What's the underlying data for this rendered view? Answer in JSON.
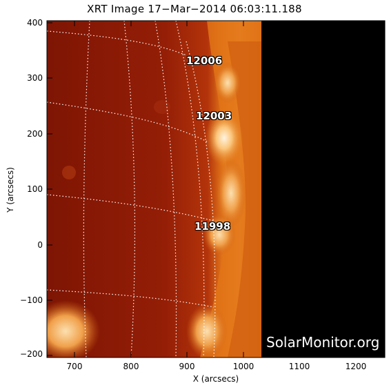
{
  "title": "XRT Image 17−Mar−2014 06:03:11.188",
  "x_axis_label": "X (arcsecs)",
  "y_axis_label": "Y (arcsecs)",
  "x_ticks": [
    "700",
    "800",
    "900",
    "1000",
    "1100",
    "1200"
  ],
  "y_ticks": [
    "400",
    "300",
    "200",
    "100",
    "0",
    "−100",
    "−200"
  ],
  "active_regions": [
    "12006",
    "12003",
    "11998"
  ],
  "watermark": "SolarMonitor.org",
  "colors": {
    "solar_disk": "#8b1a06",
    "corona": "#e88a1c",
    "background": "#000000",
    "grid": "#ffffff"
  }
}
